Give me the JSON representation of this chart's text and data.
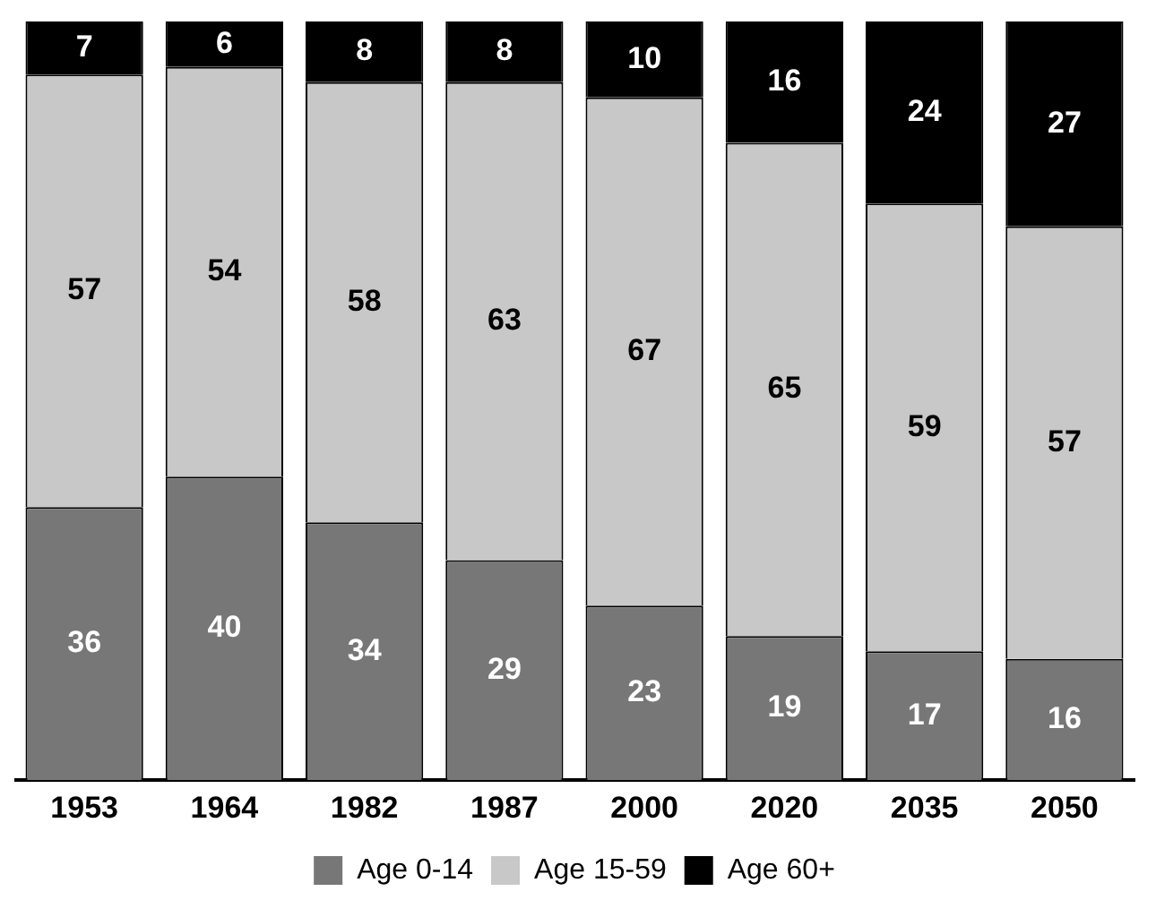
{
  "chart_data": {
    "type": "bar",
    "stacked": true,
    "categories": [
      "1953",
      "1964",
      "1982",
      "1987",
      "2000",
      "2020",
      "2035",
      "2050"
    ],
    "series": [
      {
        "name": "Age 0-14",
        "color": "#777777",
        "values": [
          36,
          40,
          34,
          29,
          23,
          19,
          17,
          16
        ]
      },
      {
        "name": "Age 15-59",
        "color": "#c8c8c8",
        "values": [
          57,
          54,
          58,
          63,
          67,
          65,
          59,
          57
        ]
      },
      {
        "name": "Age 60+",
        "color": "#000000",
        "values": [
          7,
          6,
          8,
          8,
          10,
          16,
          24,
          27
        ]
      }
    ],
    "data_labels": true,
    "legend": "bottom",
    "grid": false
  }
}
